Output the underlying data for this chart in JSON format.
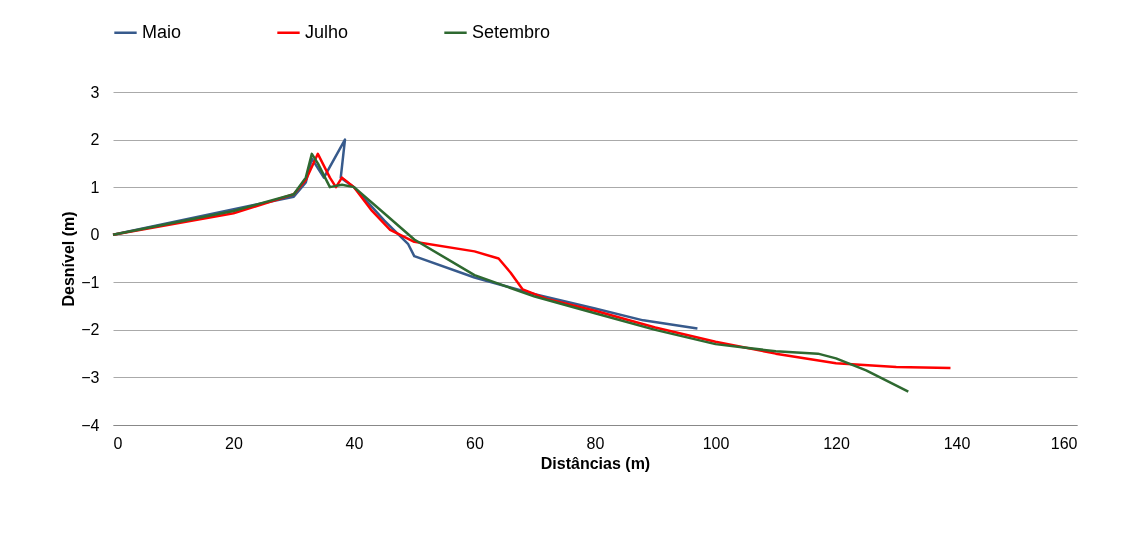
{
  "chart_data": {
    "type": "line",
    "xlabel": "Distâncias (m)",
    "ylabel": "Desnível (m)",
    "xlim": [
      0,
      160
    ],
    "xticks": [
      0,
      20,
      40,
      60,
      80,
      100,
      120,
      140,
      160
    ],
    "ylim": [
      -4,
      3
    ],
    "yticks": [
      -4,
      -3,
      -2,
      -1,
      0,
      1,
      2,
      3
    ],
    "grid": "y",
    "legend": "top",
    "marker": "none",
    "line_style": "solid",
    "series": [
      {
        "name": "Maio",
        "color": "#375a8c",
        "x": [
          0,
          30,
          32,
          33,
          35,
          38.5,
          37.8,
          40,
          45,
          49,
          50,
          60,
          70,
          80,
          88,
          97
        ],
        "values": [
          0,
          0.8,
          1.1,
          1.6,
          1.2,
          2.0,
          1.2,
          1.0,
          0.3,
          -0.2,
          -0.45,
          -0.9,
          -1.25,
          -1.55,
          -1.8,
          -1.97
        ]
      },
      {
        "name": "Julho",
        "color": "#ff0000",
        "x": [
          0,
          20,
          30,
          32,
          34,
          36,
          37,
          38,
          40,
          43,
          46,
          50,
          60,
          64,
          66,
          68,
          72,
          80,
          90,
          100,
          110,
          120,
          130,
          139
        ],
        "values": [
          0,
          0.45,
          0.85,
          1.15,
          1.7,
          1.2,
          1.0,
          1.2,
          1.0,
          0.5,
          0.1,
          -0.15,
          -0.35,
          -0.5,
          -0.8,
          -1.15,
          -1.35,
          -1.6,
          -1.95,
          -2.25,
          -2.5,
          -2.7,
          -2.78,
          -2.8
        ]
      },
      {
        "name": "Setembro",
        "color": "#2e6930",
        "x": [
          0,
          20,
          30,
          32,
          33,
          34,
          36,
          38,
          40,
          45,
          50,
          60,
          70,
          80,
          90,
          100,
          110,
          117,
          120,
          125,
          132
        ],
        "values": [
          0,
          0.5,
          0.85,
          1.2,
          1.7,
          1.5,
          1.0,
          1.05,
          1.0,
          0.45,
          -0.1,
          -0.85,
          -1.3,
          -1.65,
          -2.0,
          -2.3,
          -2.45,
          -2.5,
          -2.6,
          -2.85,
          -3.3
        ]
      }
    ]
  }
}
